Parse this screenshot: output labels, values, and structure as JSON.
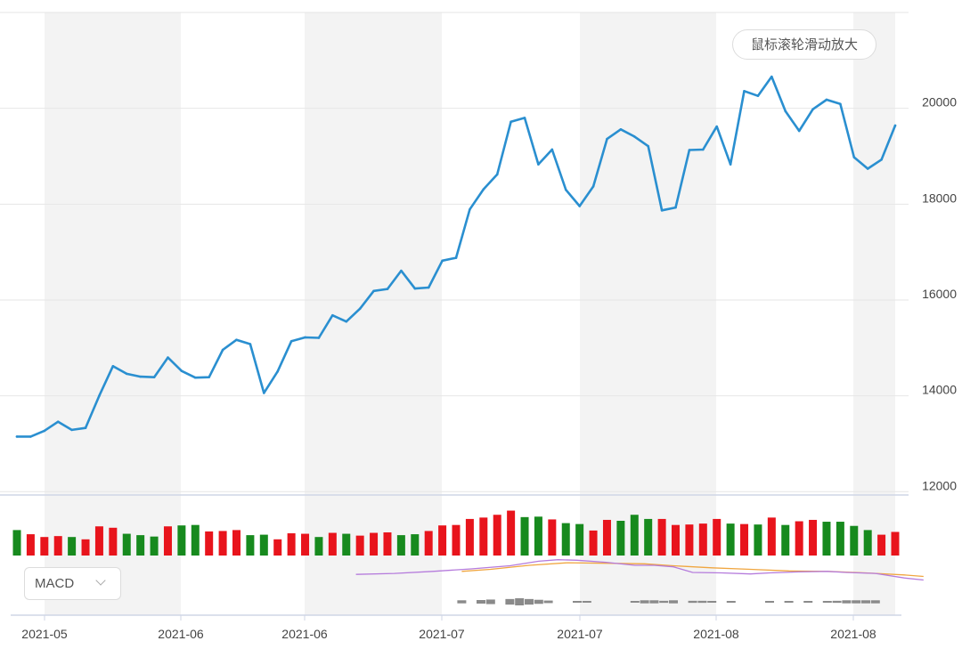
{
  "zoom_hint": "鼠标滚轮滑动放大",
  "indicator": {
    "selected": "MACD"
  },
  "colors": {
    "line": "#2a8fd0",
    "up": "#e8141c",
    "down": "#178a1e",
    "hist": "#8a8a8a",
    "dif": "#b57bdc",
    "dea": "#f0a640",
    "band": "#f3f3f3",
    "grid": "#e6e6e6"
  },
  "chart_data": {
    "type": "line",
    "y_ticks": [
      12000,
      14000,
      16000,
      18000,
      20000
    ],
    "ylim": [
      11950,
      22000
    ],
    "x_labels": [
      "2021-05",
      "2021-06",
      "2021-06",
      "2021-07",
      "2021-07",
      "2021-08",
      "2021-08"
    ],
    "values": [
      13150,
      13150,
      13270,
      13460,
      13290,
      13330,
      14000,
      14620,
      14460,
      14400,
      14390,
      14800,
      14520,
      14380,
      14390,
      14960,
      15170,
      15080,
      14060,
      14510,
      15140,
      15220,
      15210,
      15680,
      15550,
      15820,
      16190,
      16230,
      16610,
      16240,
      16260,
      16820,
      16880,
      17890,
      18310,
      18620,
      19720,
      19800,
      18830,
      19140,
      18300,
      17960,
      18370,
      19360,
      19560,
      19410,
      19210,
      17870,
      17930,
      19130,
      19140,
      19620,
      18830,
      20360,
      20260,
      20660,
      19940,
      19530,
      19980,
      20180,
      20090,
      18980,
      18740,
      18930,
      19640
    ],
    "volume": {
      "heights": [
        0.55,
        0.46,
        0.4,
        0.42,
        0.4,
        0.35,
        0.63,
        0.6,
        0.47,
        0.44,
        0.41,
        0.63,
        0.65,
        0.66,
        0.52,
        0.53,
        0.55,
        0.44,
        0.45,
        0.35,
        0.48,
        0.47,
        0.4,
        0.49,
        0.47,
        0.43,
        0.49,
        0.5,
        0.44,
        0.46,
        0.53,
        0.65,
        0.66,
        0.79,
        0.82,
        0.88,
        0.97,
        0.83,
        0.84,
        0.78,
        0.7,
        0.68,
        0.54,
        0.77,
        0.75,
        0.88,
        0.79,
        0.79,
        0.66,
        0.67,
        0.69,
        0.79,
        0.69,
        0.68,
        0.67,
        0.82,
        0.66,
        0.74,
        0.77,
        0.73,
        0.73,
        0.64,
        0.55,
        0.45,
        0.51
      ],
      "up": [
        false,
        true,
        true,
        true,
        false,
        true,
        true,
        true,
        false,
        false,
        false,
        true,
        false,
        false,
        true,
        true,
        true,
        false,
        false,
        true,
        true,
        true,
        false,
        true,
        false,
        true,
        true,
        true,
        false,
        false,
        true,
        true,
        true,
        true,
        true,
        true,
        true,
        false,
        false,
        true,
        false,
        false,
        true,
        true,
        false,
        false,
        false,
        true,
        true,
        true,
        true,
        true,
        false,
        true,
        false,
        true,
        false,
        true,
        true,
        false,
        false,
        false,
        false,
        true,
        true
      ]
    },
    "macd": {
      "dif": [
        [
          0.37,
          0.32
        ],
        [
          0.41,
          0.3
        ],
        [
          0.45,
          0.26
        ],
        [
          0.49,
          0.21
        ],
        [
          0.53,
          0.15
        ],
        [
          0.56,
          0.06
        ],
        [
          0.58,
          0.03
        ],
        [
          0.6,
          0.04
        ],
        [
          0.63,
          0.08
        ],
        [
          0.66,
          0.14
        ],
        [
          0.68,
          0.14
        ],
        [
          0.7,
          0.17
        ],
        [
          0.72,
          0.28
        ],
        [
          0.75,
          0.29
        ],
        [
          0.78,
          0.31
        ],
        [
          0.8,
          0.29
        ],
        [
          0.83,
          0.27
        ],
        [
          0.86,
          0.26
        ],
        [
          0.88,
          0.28
        ],
        [
          0.91,
          0.3
        ],
        [
          0.94,
          0.39
        ],
        [
          0.96,
          0.43
        ]
      ],
      "dea": [
        [
          0.48,
          0.26
        ],
        [
          0.51,
          0.22
        ],
        [
          0.55,
          0.14
        ],
        [
          0.59,
          0.09
        ],
        [
          0.63,
          0.1
        ],
        [
          0.67,
          0.11
        ],
        [
          0.7,
          0.15
        ],
        [
          0.74,
          0.19
        ],
        [
          0.78,
          0.22
        ],
        [
          0.82,
          0.25
        ],
        [
          0.86,
          0.26
        ],
        [
          0.9,
          0.29
        ],
        [
          0.94,
          0.33
        ],
        [
          0.96,
          0.36
        ]
      ],
      "hist": [
        [
          0.48,
          0.06
        ],
        [
          0.5,
          0.07
        ],
        [
          0.51,
          0.09
        ],
        [
          0.53,
          0.11
        ],
        [
          0.54,
          0.14
        ],
        [
          0.55,
          0.11
        ],
        [
          0.56,
          0.08
        ],
        [
          0.57,
          0.05
        ],
        [
          0.6,
          0.02
        ],
        [
          0.61,
          0.02
        ],
        [
          0.66,
          0.02
        ],
        [
          0.67,
          0.06
        ],
        [
          0.68,
          0.06
        ],
        [
          0.69,
          0.04
        ],
        [
          0.7,
          0.06
        ],
        [
          0.72,
          0.04
        ],
        [
          0.73,
          0.04
        ],
        [
          0.74,
          0.02
        ],
        [
          0.76,
          0.01
        ],
        [
          0.8,
          0.01
        ],
        [
          0.82,
          0.01
        ],
        [
          0.84,
          0.01
        ],
        [
          0.86,
          0.01
        ],
        [
          0.87,
          0.04
        ],
        [
          0.88,
          0.06
        ],
        [
          0.89,
          0.06
        ],
        [
          0.9,
          0.06
        ],
        [
          0.91,
          0.06
        ]
      ]
    }
  }
}
